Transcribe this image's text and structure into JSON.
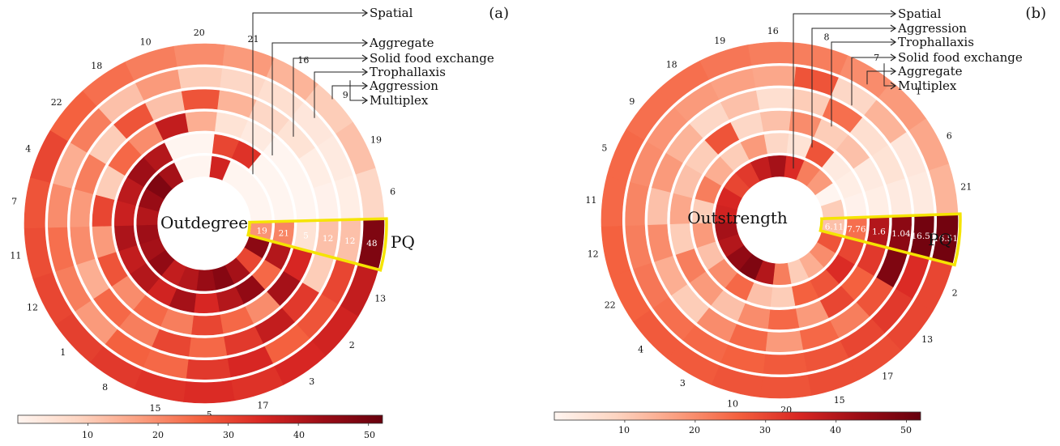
{
  "chart_data": [
    {
      "type": "heatmap",
      "panel_label": "(a)",
      "center_title": "Outdegree",
      "highlight_label": "PQ",
      "layers_inner_to_outer": [
        "Spatial",
        "Aggregate",
        "Solid food exchange",
        "Trophallaxis",
        "Aggression",
        "Multiplex"
      ],
      "layer_labels_top_to_bottom": [
        "Spatial",
        "Aggregate",
        "Solid food exchange",
        "Trophallaxis",
        "Aggression",
        "Multiplex"
      ],
      "nodes_clockwise": [
        "PQ",
        "13",
        "2",
        "3",
        "17",
        "5",
        "15",
        "8",
        "1",
        "12",
        "11",
        "7",
        "4",
        "22",
        "18",
        "10",
        "20",
        "21",
        "16",
        "9",
        "19",
        "6"
      ],
      "highlight_values": [
        "19",
        "21",
        "5",
        "12",
        "12",
        "48"
      ],
      "values": [
        [
          19,
          21,
          5,
          12,
          12,
          48
        ],
        [
          46,
          40,
          35,
          10,
          30,
          38
        ],
        [
          30,
          25,
          42,
          32,
          28,
          36
        ],
        [
          42,
          45,
          20,
          38,
          26,
          35
        ],
        [
          47,
          40,
          25,
          32,
          35,
          33
        ],
        [
          44,
          35,
          30,
          25,
          32,
          34
        ],
        [
          40,
          42,
          22,
          30,
          25,
          33
        ],
        [
          38,
          36,
          25,
          22,
          26,
          32
        ],
        [
          45,
          40,
          20,
          25,
          18,
          31
        ],
        [
          42,
          38,
          28,
          15,
          22,
          30
        ],
        [
          43,
          41,
          18,
          20,
          24,
          29
        ],
        [
          40,
          37,
          30,
          18,
          20,
          28
        ],
        [
          44,
          39,
          10,
          22,
          15,
          30
        ],
        [
          48,
          43,
          25,
          10,
          22,
          26
        ],
        [
          42,
          40,
          20,
          28,
          12,
          24
        ],
        [
          0,
          0,
          38,
          12,
          18,
          22
        ],
        [
          0,
          0,
          15,
          28,
          10,
          20
        ],
        [
          36,
          30,
          5,
          14,
          8,
          18
        ],
        [
          0,
          33,
          3,
          8,
          6,
          14
        ],
        [
          0,
          0,
          0,
          5,
          4,
          10
        ],
        [
          0,
          0,
          0,
          2,
          3,
          12
        ],
        [
          0,
          0,
          0,
          1,
          2,
          8
        ]
      ],
      "colorbar": {
        "min": 0,
        "max": 52,
        "ticks": [
          "10",
          "20",
          "30",
          "40",
          "50"
        ]
      }
    },
    {
      "type": "heatmap",
      "panel_label": "(b)",
      "center_title": "Outstrength",
      "highlight_label": "PQ",
      "layers_inner_to_outer": [
        "Spatial",
        "Aggression",
        "Trophallaxis",
        "Solid food exchange",
        "Aggregate",
        "Multiplex"
      ],
      "layer_labels_top_to_bottom": [
        "Spatial",
        "Aggression",
        "Trophallaxis",
        "Solid food exchange",
        "Aggregate",
        "Multiplex"
      ],
      "nodes_clockwise": [
        "PQ",
        "2",
        "13",
        "17",
        "15",
        "20",
        "10",
        "3",
        "4",
        "22",
        "12",
        "11",
        "5",
        "9",
        "18",
        "19",
        "16",
        "8",
        "7",
        "1",
        "6",
        "21"
      ],
      "highlight_values": [
        "6.11",
        "7.76",
        "1.6",
        "1.04",
        "16.51",
        "16.51"
      ],
      "values": [
        [
          12,
          24,
          40,
          46,
          50,
          50
        ],
        [
          28,
          30,
          32,
          48,
          34,
          30
        ],
        [
          20,
          34,
          26,
          28,
          32,
          30
        ],
        [
          15,
          28,
          30,
          22,
          30,
          29
        ],
        [
          10,
          26,
          18,
          25,
          28,
          29
        ],
        [
          22,
          10,
          25,
          18,
          27,
          28
        ],
        [
          40,
          12,
          20,
          25,
          26,
          28
        ],
        [
          48,
          25,
          12,
          20,
          25,
          27
        ],
        [
          45,
          20,
          18,
          10,
          24,
          27
        ],
        [
          40,
          12,
          22,
          15,
          23,
          26
        ],
        [
          42,
          18,
          10,
          20,
          22,
          26
        ],
        [
          36,
          10,
          16,
          12,
          21,
          25
        ],
        [
          35,
          22,
          12,
          18,
          20,
          25
        ],
        [
          30,
          15,
          10,
          14,
          19,
          24
        ],
        [
          32,
          10,
          28,
          8,
          18,
          24
        ],
        [
          38,
          18,
          8,
          12,
          17,
          23
        ],
        [
          42,
          8,
          12,
          6,
          16,
          22
        ],
        [
          34,
          5,
          20,
          10,
          28,
          22
        ],
        [
          22,
          28,
          10,
          24,
          8,
          20
        ],
        [
          18,
          3,
          12,
          6,
          14,
          18
        ],
        [
          0,
          2,
          3,
          5,
          4,
          16
        ],
        [
          10,
          1,
          2,
          3,
          3,
          14
        ]
      ],
      "colorbar": {
        "min": 0,
        "max": 52,
        "ticks": [
          "10",
          "20",
          "30",
          "40",
          "50"
        ]
      }
    }
  ],
  "colors": {
    "scale": [
      "#fff5f0",
      "#fdd5c2",
      "#fb9f80",
      "#f4613f",
      "#d92723",
      "#9c0d16",
      "#67000d"
    ],
    "highlight": "#f5e400",
    "separator": "#ffffff"
  }
}
